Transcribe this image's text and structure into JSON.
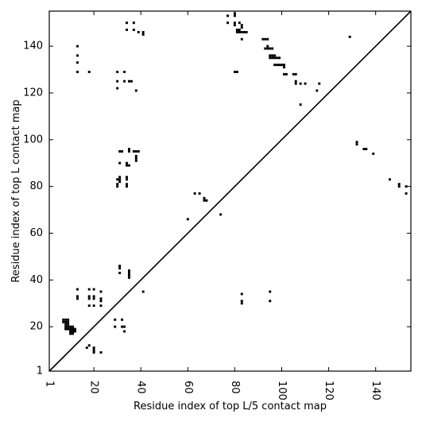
{
  "chart_data": {
    "type": "scatter",
    "title": "",
    "xlabel": "Residue index of top L/5 contact map",
    "ylabel": "Residue index of top L contact map",
    "xlim": [
      1,
      155
    ],
    "ylim": [
      1,
      155
    ],
    "xticks": [
      1,
      20,
      40,
      60,
      80,
      100,
      120,
      140
    ],
    "yticks": [
      1,
      20,
      40,
      60,
      80,
      100,
      120,
      140
    ],
    "xtick_rotation": -90,
    "grid": false,
    "diagonal_line": true,
    "marker": "square",
    "color": "#000000",
    "points": [
      [
        7,
        22
      ],
      [
        7,
        23
      ],
      [
        8,
        22
      ],
      [
        8,
        23
      ],
      [
        8,
        21
      ],
      [
        8,
        20
      ],
      [
        8,
        19
      ],
      [
        9,
        19
      ],
      [
        9,
        20
      ],
      [
        9,
        21
      ],
      [
        9,
        22
      ],
      [
        9,
        23
      ],
      [
        10,
        19
      ],
      [
        10,
        20
      ],
      [
        10,
        18
      ],
      [
        10,
        17
      ],
      [
        11,
        17
      ],
      [
        11,
        18
      ],
      [
        11,
        19
      ],
      [
        11,
        20
      ],
      [
        12,
        18
      ],
      [
        12,
        19
      ],
      [
        13,
        32
      ],
      [
        13,
        33
      ],
      [
        13,
        36
      ],
      [
        17,
        11
      ],
      [
        18,
        12
      ],
      [
        18,
        29
      ],
      [
        18,
        32
      ],
      [
        18,
        33
      ],
      [
        18,
        36
      ],
      [
        20,
        9
      ],
      [
        20,
        10
      ],
      [
        20,
        11
      ],
      [
        20,
        29
      ],
      [
        20,
        32
      ],
      [
        20,
        33
      ],
      [
        20,
        36
      ],
      [
        23,
        9
      ],
      [
        23,
        29
      ],
      [
        23,
        31
      ],
      [
        23,
        32
      ],
      [
        23,
        35
      ],
      [
        29,
        20
      ],
      [
        29,
        23
      ],
      [
        32,
        20
      ],
      [
        32,
        23
      ],
      [
        33,
        18
      ],
      [
        33,
        20
      ],
      [
        31,
        43
      ],
      [
        31,
        45
      ],
      [
        31,
        46
      ],
      [
        35,
        41
      ],
      [
        35,
        42
      ],
      [
        35,
        43
      ],
      [
        35,
        44
      ],
      [
        41,
        35
      ],
      [
        30,
        80
      ],
      [
        30,
        81
      ],
      [
        30,
        83
      ],
      [
        31,
        82
      ],
      [
        31,
        83
      ],
      [
        31,
        84
      ],
      [
        31,
        90
      ],
      [
        31,
        95
      ],
      [
        32,
        95
      ],
      [
        34,
        80
      ],
      [
        34,
        81
      ],
      [
        34,
        83
      ],
      [
        34,
        84
      ],
      [
        34,
        89
      ],
      [
        34,
        90
      ],
      [
        35,
        89
      ],
      [
        35,
        95
      ],
      [
        35,
        96
      ],
      [
        37,
        95
      ],
      [
        38,
        95
      ],
      [
        38,
        93
      ],
      [
        38,
        92
      ],
      [
        38,
        91
      ],
      [
        39,
        95
      ],
      [
        13,
        129
      ],
      [
        13,
        133
      ],
      [
        13,
        136
      ],
      [
        13,
        140
      ],
      [
        18,
        129
      ],
      [
        30,
        122
      ],
      [
        30,
        125
      ],
      [
        30,
        129
      ],
      [
        33,
        125
      ],
      [
        33,
        129
      ],
      [
        34,
        147
      ],
      [
        34,
        150
      ],
      [
        35,
        125
      ],
      [
        36,
        125
      ],
      [
        37,
        147
      ],
      [
        37,
        150
      ],
      [
        38,
        121
      ],
      [
        39,
        146
      ],
      [
        41,
        145
      ],
      [
        41,
        146
      ],
      [
        60,
        66
      ],
      [
        63,
        77
      ],
      [
        65,
        77
      ],
      [
        67,
        75
      ],
      [
        67,
        74
      ],
      [
        68,
        74
      ],
      [
        74,
        68
      ],
      [
        77,
        150
      ],
      [
        77,
        153
      ],
      [
        80,
        129
      ],
      [
        80,
        149
      ],
      [
        80,
        150
      ],
      [
        80,
        153
      ],
      [
        80,
        154
      ],
      [
        81,
        129
      ],
      [
        81,
        146
      ],
      [
        81,
        147
      ],
      [
        82,
        146
      ],
      [
        82,
        147
      ],
      [
        82,
        150
      ],
      [
        83,
        143
      ],
      [
        83,
        146
      ],
      [
        83,
        148
      ],
      [
        83,
        149
      ],
      [
        84,
        146
      ],
      [
        85,
        146
      ],
      [
        83,
        30
      ],
      [
        83,
        31
      ],
      [
        83,
        34
      ],
      [
        95,
        31
      ],
      [
        95,
        35
      ],
      [
        92,
        143
      ],
      [
        93,
        139
      ],
      [
        93,
        143
      ],
      [
        94,
        139
      ],
      [
        94,
        140
      ],
      [
        94,
        143
      ],
      [
        95,
        136
      ],
      [
        95,
        139
      ],
      [
        95,
        135
      ],
      [
        96,
        135
      ],
      [
        96,
        136
      ],
      [
        96,
        139
      ],
      [
        97,
        132
      ],
      [
        97,
        135
      ],
      [
        97,
        136
      ],
      [
        98,
        132
      ],
      [
        98,
        135
      ],
      [
        99,
        132
      ],
      [
        99,
        135
      ],
      [
        100,
        132
      ],
      [
        101,
        128
      ],
      [
        101,
        131
      ],
      [
        101,
        132
      ],
      [
        102,
        128
      ],
      [
        105,
        128
      ],
      [
        106,
        124
      ],
      [
        106,
        125
      ],
      [
        106,
        128
      ],
      [
        108,
        115
      ],
      [
        108,
        124
      ],
      [
        110,
        124
      ],
      [
        115,
        121
      ],
      [
        116,
        124
      ],
      [
        129,
        144
      ],
      [
        132,
        98
      ],
      [
        132,
        99
      ],
      [
        135,
        96
      ],
      [
        136,
        96
      ],
      [
        139,
        94
      ],
      [
        146,
        83
      ],
      [
        150,
        80
      ],
      [
        150,
        81
      ],
      [
        153,
        77
      ],
      [
        153,
        80
      ]
    ]
  }
}
